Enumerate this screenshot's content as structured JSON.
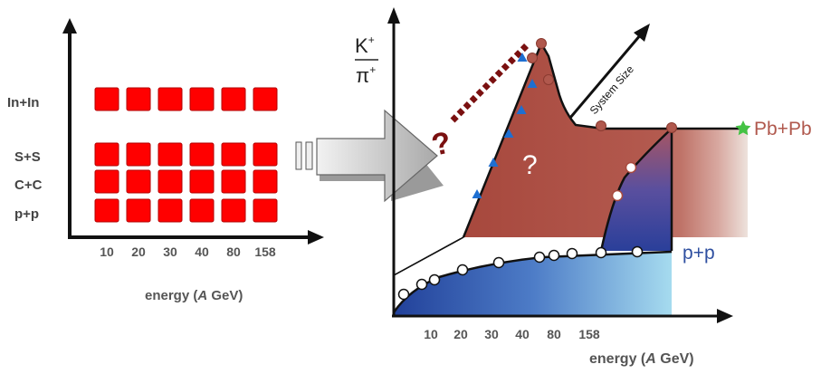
{
  "left_panel": {
    "systems": [
      "In+In",
      "S+S",
      "C+C",
      "p+p"
    ],
    "energies": [
      "10",
      "20",
      "30",
      "40",
      "80",
      "158"
    ],
    "xlabel_prefix": "energy (",
    "xlabel_italic": "A",
    "xlabel_suffix": " GeV)",
    "square_color": "#ff0000"
  },
  "right_panel": {
    "ylabel_num": "K",
    "ylabel_num_sup": "+",
    "ylabel_den": "π",
    "ylabel_den_sup": "+",
    "energies": [
      "10",
      "20",
      "30",
      "40",
      "80",
      "158"
    ],
    "xlabel_prefix": "energy (",
    "xlabel_italic": "A",
    "xlabel_suffix": " GeV)",
    "system_size_label": "System Size",
    "pbpb_label": "Pb+Pb",
    "pp_label": "p+p",
    "question_mark": "?",
    "extrapolation_question": "?",
    "colors": {
      "pbpb": "#b0584d",
      "pp": "#2e4fa0",
      "marker_triangle": "#1e6fd1",
      "star": "#44c244",
      "dotted_line": "#7a1010"
    }
  }
}
